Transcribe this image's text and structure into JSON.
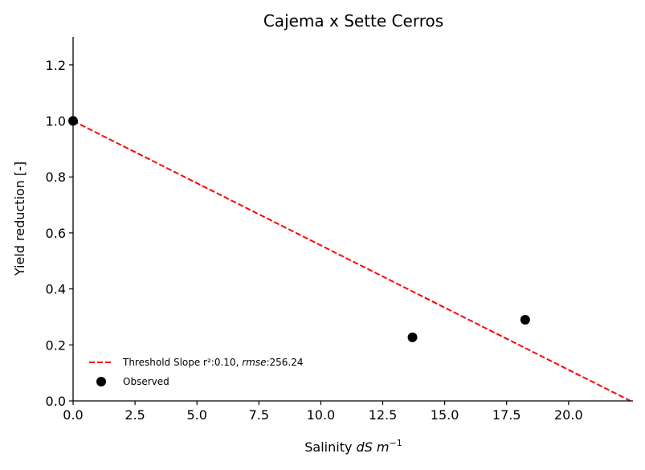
{
  "chart_data": {
    "type": "scatter",
    "title": "Cajema x Sette Cerros",
    "xlabel": {
      "prefix": "Salinity ",
      "italic": "dS m",
      "sup": "−1"
    },
    "ylabel": "Yield reduction [-]",
    "xlim": [
      0,
      22.6
    ],
    "ylim": [
      0,
      1.3
    ],
    "xticks": [
      0.0,
      2.5,
      5.0,
      7.5,
      10.0,
      12.5,
      15.0,
      17.5,
      20.0
    ],
    "yticks": [
      0.0,
      0.2,
      0.4,
      0.6,
      0.8,
      1.0,
      1.2
    ],
    "grid": false,
    "legend_placement": "lower-left",
    "series": [
      {
        "name": {
          "prefix": "Threshold Slope r²:0.10, ",
          "italic1": "rmse",
          "suffix": ":256.24"
        },
        "kind": "line",
        "style": "dashed",
        "color": "#ff0000",
        "x": [
          0.0,
          22.5
        ],
        "y": [
          1.0,
          0.0
        ]
      },
      {
        "name": "Observed",
        "kind": "scatter",
        "color": "#000000",
        "x": [
          0.0,
          13.7,
          18.25
        ],
        "y": [
          1.0,
          0.227,
          0.29
        ]
      }
    ]
  }
}
